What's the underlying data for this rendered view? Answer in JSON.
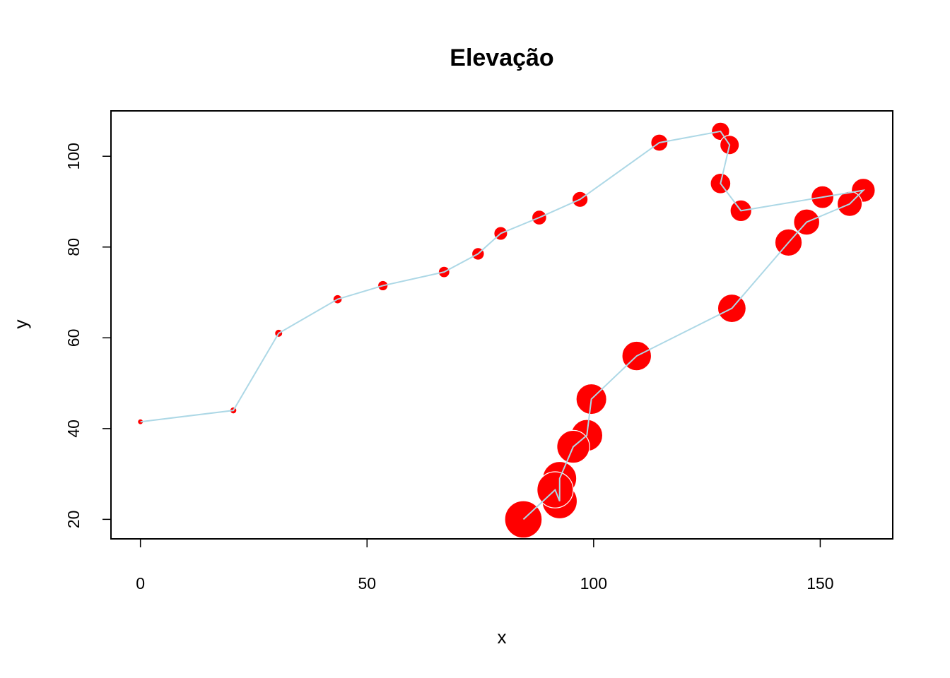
{
  "chart_data": {
    "type": "scatter",
    "title": "Elevação",
    "xlabel": "x",
    "ylabel": "y",
    "xlim": [
      -6.5,
      166
    ],
    "ylim": [
      15.7,
      110
    ],
    "x_ticks": [
      0,
      50,
      100,
      150
    ],
    "y_ticks": [
      20,
      40,
      60,
      80,
      100
    ],
    "grid": false,
    "legend": "none",
    "point_color": "#FF0000",
    "line_color": "#ADD8E6",
    "series": [
      {
        "x": [
          0,
          20.5,
          30.5,
          43.5,
          53.5,
          67,
          74.5,
          79.5,
          88,
          97,
          114.5,
          128,
          130,
          128,
          132.5,
          150.5,
          159.5,
          156.5,
          147,
          143,
          130.5,
          109.5,
          99.5,
          98.5,
          95.5,
          92.5,
          92.5,
          91.5,
          84.5
        ],
        "y": [
          41.5,
          44,
          61,
          68.5,
          71.5,
          74.5,
          78.5,
          83,
          86.5,
          90.5,
          103,
          105.5,
          102.5,
          94,
          88,
          91,
          92.5,
          89.5,
          85.5,
          81,
          66.5,
          56,
          46.5,
          38.5,
          36,
          29,
          24,
          26.5,
          20
        ],
        "size": [
          0.5,
          0.6,
          0.7,
          0.8,
          0.9,
          1,
          1.1,
          1.2,
          1.3,
          1.4,
          1.5,
          1.6,
          1.7,
          1.8,
          1.9,
          2,
          2.1,
          2.2,
          2.3,
          2.4,
          2.5,
          2.6,
          2.7,
          2.8,
          2.9,
          3,
          3.1,
          3.2,
          3.3
        ]
      }
    ]
  }
}
